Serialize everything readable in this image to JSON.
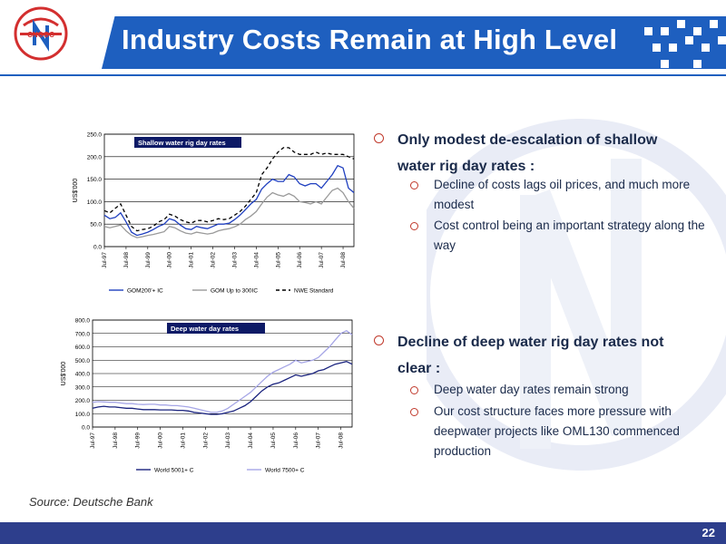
{
  "header": {
    "title": "Industry Costs Remain at High Level",
    "logo_text": "CNOOC"
  },
  "bullets": [
    {
      "text": "Only modest de-escalation of shallow water rig day rates :",
      "subs": [
        "Decline of costs lags oil prices, and much more modest",
        "Cost control being an important strategy along the way"
      ]
    },
    {
      "text": "Decline of deep water rig day rates not clear :",
      "subs": [
        "Deep water day rates remain strong",
        "Our cost structure faces more pressure with deepwater projects like OML130 commenced production"
      ]
    }
  ],
  "source": "Source: Deutsche Bank",
  "page_number": "22",
  "colors": {
    "brand_blue": "#1e5fbf",
    "footer_blue": "#2d3e8c",
    "bullet_red": "#c0392b"
  },
  "chart_data": [
    {
      "type": "line",
      "title": "Shallow water rig day rates",
      "ylabel": "US$'000",
      "ylim": [
        0,
        250
      ],
      "yticks": [
        "0.0",
        "50.0",
        "100.0",
        "150.0",
        "200.0",
        "250.0"
      ],
      "x_ticks": [
        "Jul-97",
        "Jul-98",
        "Jul-99",
        "Jul-00",
        "Jul-01",
        "Jul-02",
        "Jul-03",
        "Jul-04",
        "Jul-05",
        "Jul-06",
        "Jul-07",
        "Jul-08"
      ],
      "x": [
        1997.5,
        1997.75,
        1998.0,
        1998.25,
        1998.5,
        1998.75,
        1999.0,
        1999.25,
        1999.5,
        1999.75,
        2000.0,
        2000.25,
        2000.5,
        2000.75,
        2001.0,
        2001.25,
        2001.5,
        2001.75,
        2002.0,
        2002.25,
        2002.5,
        2002.75,
        2003.0,
        2003.25,
        2003.5,
        2003.75,
        2004.0,
        2004.25,
        2004.5,
        2004.75,
        2005.0,
        2005.25,
        2005.5,
        2005.75,
        2006.0,
        2006.25,
        2006.5,
        2006.75,
        2007.0,
        2007.25,
        2007.5,
        2007.75,
        2008.0,
        2008.25,
        2008.5,
        2008.75,
        2009.0
      ],
      "series": [
        {
          "name": "GOM200'+ IC",
          "color": "#1f3fbf",
          "dash": "",
          "values": [
            70,
            62,
            65,
            75,
            55,
            32,
            25,
            28,
            32,
            38,
            45,
            50,
            62,
            58,
            48,
            40,
            38,
            45,
            42,
            40,
            45,
            50,
            50,
            52,
            60,
            70,
            82,
            95,
            105,
            128,
            140,
            150,
            145,
            145,
            160,
            155,
            140,
            135,
            140,
            140,
            130,
            145,
            160,
            180,
            175,
            130,
            120
          ]
        },
        {
          "name": "GOM Up to 300IC",
          "color": "#9a9a9a",
          "dash": "",
          "values": [
            45,
            42,
            45,
            48,
            35,
            25,
            20,
            22,
            25,
            27,
            30,
            33,
            45,
            42,
            35,
            30,
            28,
            32,
            30,
            28,
            30,
            35,
            38,
            40,
            44,
            50,
            60,
            68,
            78,
            95,
            110,
            120,
            115,
            112,
            118,
            112,
            100,
            98,
            95,
            100,
            95,
            110,
            125,
            130,
            120,
            100,
            85
          ]
        },
        {
          "name": "NWE Standard",
          "color": "#000000",
          "dash": "4,3",
          "values": [
            80,
            75,
            85,
            95,
            70,
            45,
            35,
            38,
            40,
            45,
            55,
            60,
            72,
            68,
            60,
            55,
            52,
            58,
            58,
            55,
            58,
            62,
            60,
            62,
            70,
            78,
            90,
            105,
            120,
            160,
            175,
            195,
            210,
            220,
            220,
            210,
            205,
            205,
            205,
            210,
            205,
            208,
            205,
            205,
            205,
            200,
            195
          ]
        }
      ]
    },
    {
      "type": "line",
      "title": "Deep water day rates",
      "ylabel": "US$'000",
      "ylim": [
        0,
        800
      ],
      "yticks": [
        "0.0",
        "100.0",
        "200.0",
        "300.0",
        "400.0",
        "500.0",
        "600.0",
        "700.0",
        "800.0"
      ],
      "x_ticks": [
        "Jul-97",
        "Jul-98",
        "Jul-99",
        "Jul-00",
        "Jul-01",
        "Jul-02",
        "Jul-03",
        "Jul-04",
        "Jul-05",
        "Jul-06",
        "Jul-07",
        "Jul-08"
      ],
      "x": [
        1997.5,
        1997.75,
        1998.0,
        1998.25,
        1998.5,
        1998.75,
        1999.0,
        1999.25,
        1999.5,
        1999.75,
        2000.0,
        2000.25,
        2000.5,
        2000.75,
        2001.0,
        2001.25,
        2001.5,
        2001.75,
        2002.0,
        2002.25,
        2002.5,
        2002.75,
        2003.0,
        2003.25,
        2003.5,
        2003.75,
        2004.0,
        2004.25,
        2004.5,
        2004.75,
        2005.0,
        2005.25,
        2005.5,
        2005.75,
        2006.0,
        2006.25,
        2006.5,
        2006.75,
        2007.0,
        2007.25,
        2007.5,
        2007.75,
        2008.0,
        2008.25,
        2008.5,
        2008.75,
        2009.0
      ],
      "series": [
        {
          "name": "World 5001+ C",
          "color": "#1a237e",
          "dash": "",
          "values": [
            140,
            150,
            155,
            150,
            150,
            145,
            140,
            140,
            135,
            130,
            130,
            130,
            128,
            128,
            128,
            125,
            125,
            120,
            110,
            105,
            100,
            95,
            95,
            100,
            110,
            120,
            140,
            160,
            190,
            230,
            270,
            300,
            320,
            330,
            350,
            370,
            390,
            380,
            390,
            400,
            420,
            430,
            450,
            470,
            480,
            490,
            470
          ]
        },
        {
          "name": "World 7500+ C",
          "color": "#a6a6e6",
          "dash": "",
          "values": [
            185,
            190,
            188,
            185,
            185,
            180,
            175,
            175,
            170,
            168,
            170,
            170,
            165,
            165,
            160,
            160,
            155,
            150,
            140,
            130,
            120,
            110,
            110,
            120,
            140,
            170,
            200,
            230,
            260,
            300,
            340,
            380,
            410,
            430,
            450,
            470,
            500,
            480,
            490,
            500,
            520,
            560,
            600,
            650,
            700,
            720,
            690
          ]
        }
      ]
    }
  ]
}
